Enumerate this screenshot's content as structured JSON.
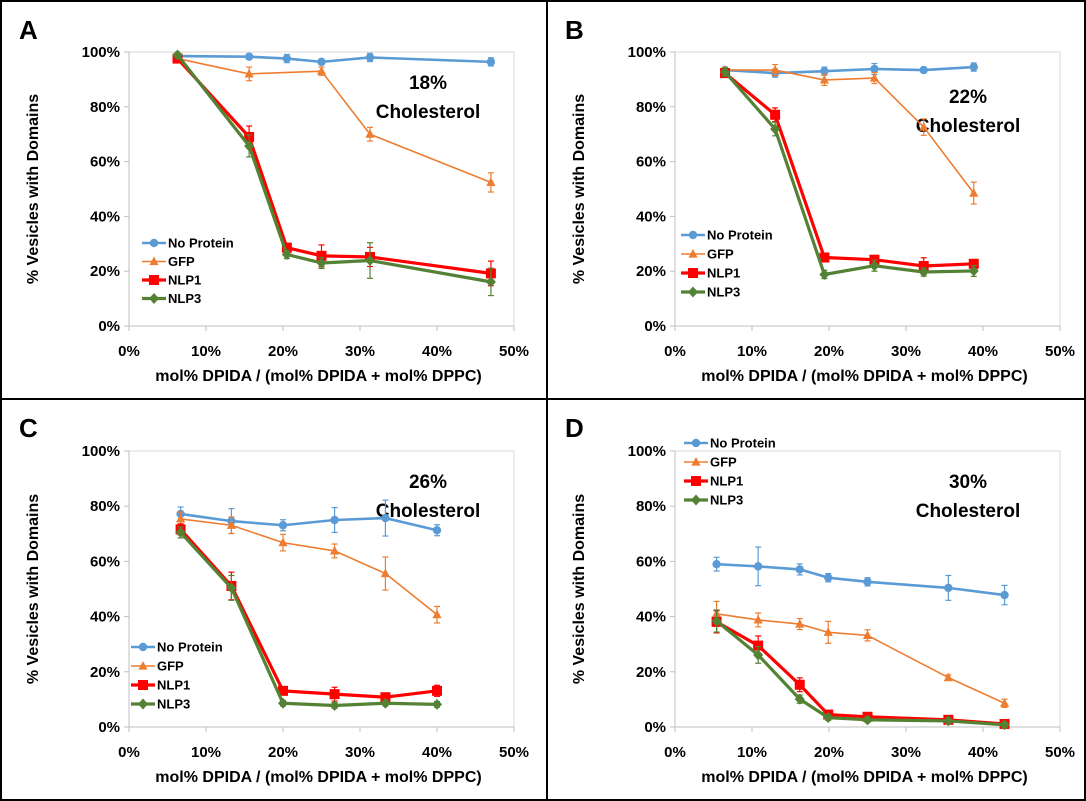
{
  "figure": {
    "colors": {
      "No Protein": "#5B9BD5",
      "GFP": "#ED7D31",
      "NLP1": "#FF0000",
      "NLP3": "#548235"
    }
  },
  "chart_data": [
    {
      "type": "line",
      "panel_label": "A",
      "annotation": [
        "18%",
        "Cholesterol"
      ],
      "xlabel": "mol% DPIDA / (mol% DPIDA + mol% DPPC)",
      "ylabel": "% Vesicles with Domains",
      "xlim": [
        0,
        50
      ],
      "ylim": [
        0,
        100
      ],
      "xticks": [
        "0%",
        "10%",
        "20%",
        "30%",
        "40%",
        "50%"
      ],
      "yticks": [
        "0%",
        "20%",
        "40%",
        "60%",
        "80%",
        "100%"
      ],
      "legend_position": "lower-left",
      "series": [
        {
          "name": "No Protein",
          "marker": "circle",
          "x": [
            6.3,
            15.6,
            20.5,
            25.0,
            31.3,
            47.0
          ],
          "y": [
            98.5,
            98.3,
            97.6,
            96.4,
            98.0,
            96.4
          ],
          "err": [
            1.0,
            1.0,
            1.5,
            1.0,
            1.5,
            1.5
          ]
        },
        {
          "name": "GFP",
          "marker": "triangle",
          "x": [
            6.3,
            15.6,
            25.0,
            31.3,
            47.0
          ],
          "y": [
            97.6,
            92.0,
            93.0,
            70.0,
            52.4
          ],
          "err": [
            1.0,
            2.5,
            1.5,
            2.5,
            3.5
          ]
        },
        {
          "name": "NLP1",
          "marker": "square",
          "x": [
            6.3,
            15.6,
            20.5,
            25.0,
            31.3,
            47.0
          ],
          "y": [
            97.6,
            69.0,
            28.6,
            25.6,
            25.2,
            19.2
          ],
          "err": [
            1.0,
            4.0,
            1.5,
            4.0,
            3.5,
            4.5
          ]
        },
        {
          "name": "NLP3",
          "marker": "diamond",
          "x": [
            6.3,
            15.6,
            20.5,
            25.0,
            31.3,
            47.0
          ],
          "y": [
            98.9,
            65.7,
            26.1,
            23.0,
            23.9,
            16.1
          ],
          "err": [
            1.0,
            4.0,
            1.5,
            2.0,
            6.5,
            5.0
          ]
        }
      ]
    },
    {
      "type": "line",
      "panel_label": "B",
      "annotation": [
        "22%",
        "Cholesterol"
      ],
      "xlabel": "mol% DPIDA / (mol% DPIDA + mol% DPPC)",
      "ylabel": "% Vesicles with Domains",
      "xlim": [
        0,
        50
      ],
      "ylim": [
        0,
        100
      ],
      "xticks": [
        "0%",
        "10%",
        "20%",
        "30%",
        "40%",
        "50%"
      ],
      "yticks": [
        "0%",
        "20%",
        "40%",
        "60%",
        "80%",
        "100%"
      ],
      "legend_position": "lower-left",
      "series": [
        {
          "name": "No Protein",
          "marker": "circle",
          "x": [
            6.5,
            13.0,
            19.4,
            25.9,
            32.3,
            38.8
          ],
          "y": [
            93.4,
            92.3,
            93.0,
            93.8,
            93.4,
            94.5
          ],
          "err": [
            1.0,
            1.5,
            1.5,
            2.0,
            1.0,
            1.5
          ]
        },
        {
          "name": "GFP",
          "marker": "triangle",
          "x": [
            6.5,
            13.0,
            19.4,
            25.9,
            32.3,
            38.8
          ],
          "y": [
            93.4,
            93.4,
            89.8,
            90.5,
            72.6,
            48.5
          ],
          "err": [
            1.0,
            2.0,
            2.0,
            2.0,
            3.0,
            4.0
          ]
        },
        {
          "name": "NLP1",
          "marker": "square",
          "x": [
            6.5,
            13.0,
            19.4,
            25.9,
            32.3,
            38.8
          ],
          "y": [
            92.3,
            77.1,
            25.0,
            24.2,
            21.9,
            22.7
          ],
          "err": [
            1.5,
            2.5,
            1.5,
            1.5,
            3.0,
            1.5
          ]
        },
        {
          "name": "NLP3",
          "marker": "diamond",
          "x": [
            6.5,
            13.0,
            19.4,
            25.9,
            32.3,
            38.8
          ],
          "y": [
            92.7,
            71.9,
            18.8,
            22.0,
            19.7,
            20.1
          ],
          "err": [
            1.5,
            2.5,
            1.5,
            2.0,
            1.5,
            2.0
          ]
        }
      ]
    },
    {
      "type": "line",
      "panel_label": "C",
      "annotation": [
        "26%",
        "Cholesterol"
      ],
      "xlabel": "mol% DPIDA / (mol% DPIDA + mol% DPPC)",
      "ylabel": "% Vesicles with Domains",
      "xlim": [
        0,
        50
      ],
      "ylim": [
        0,
        100
      ],
      "xticks": [
        "0%",
        "10%",
        "20%",
        "30%",
        "40%",
        "50%"
      ],
      "yticks": [
        "0%",
        "20%",
        "40%",
        "60%",
        "80%",
        "100%"
      ],
      "legend_position": "lower-left",
      "series": [
        {
          "name": "No Protein",
          "marker": "circle",
          "x": [
            6.7,
            13.3,
            20.0,
            26.7,
            33.3,
            40.0
          ],
          "y": [
            77.2,
            74.6,
            73.1,
            75.0,
            75.7,
            71.3
          ],
          "err": [
            2.5,
            4.5,
            2.0,
            4.5,
            6.5,
            2.0
          ]
        },
        {
          "name": "GFP",
          "marker": "triangle",
          "x": [
            6.7,
            13.3,
            20.0,
            26.7,
            33.3,
            40.0
          ],
          "y": [
            75.4,
            73.1,
            66.8,
            63.8,
            55.6,
            40.7
          ],
          "err": [
            2.5,
            3.0,
            3.0,
            2.5,
            6.0,
            3.0
          ]
        },
        {
          "name": "NLP1",
          "marker": "square",
          "x": [
            6.7,
            13.3,
            20.0,
            26.7,
            33.3,
            40.0
          ],
          "y": [
            71.6,
            51.1,
            13.1,
            11.9,
            10.8,
            13.1
          ],
          "err": [
            2.0,
            5.0,
            1.0,
            2.5,
            1.0,
            2.0
          ]
        },
        {
          "name": "NLP3",
          "marker": "diamond",
          "x": [
            6.7,
            13.3,
            20.0,
            26.7,
            33.3,
            40.0
          ],
          "y": [
            70.5,
            50.4,
            8.6,
            7.8,
            8.6,
            8.2
          ],
          "err": [
            2.0,
            4.5,
            1.0,
            1.0,
            1.0,
            1.0
          ]
        }
      ]
    },
    {
      "type": "line",
      "panel_label": "D",
      "annotation": [
        "30%",
        "Cholesterol"
      ],
      "xlabel": "mol% DPIDA / (mol% DPIDA + mol% DPPC)",
      "ylabel": "% Vesicles with Domains",
      "xlim": [
        0,
        50
      ],
      "ylim": [
        0,
        100
      ],
      "xticks": [
        "0%",
        "10%",
        "20%",
        "30%",
        "40%",
        "50%"
      ],
      "yticks": [
        "0%",
        "20%",
        "40%",
        "60%",
        "80%",
        "100%"
      ],
      "legend_position": "top-left",
      "series": [
        {
          "name": "No Protein",
          "marker": "circle",
          "x": [
            5.4,
            10.8,
            16.2,
            19.9,
            25.0,
            35.5,
            42.8
          ],
          "y": [
            59.0,
            58.2,
            57.1,
            54.1,
            52.6,
            50.4,
            47.8
          ],
          "err": [
            2.5,
            7.0,
            2.0,
            1.5,
            1.5,
            4.5,
            3.5
          ]
        },
        {
          "name": "GFP",
          "marker": "triangle",
          "x": [
            5.4,
            10.8,
            16.2,
            19.9,
            25.0,
            35.5,
            42.8
          ],
          "y": [
            41.0,
            38.8,
            37.3,
            34.3,
            33.2,
            17.9,
            8.6
          ],
          "err": [
            4.5,
            2.5,
            2.0,
            4.0,
            2.0,
            1.0,
            1.5
          ]
        },
        {
          "name": "NLP1",
          "marker": "square",
          "x": [
            5.4,
            10.8,
            16.2,
            19.9,
            25.0,
            35.5,
            42.8
          ],
          "y": [
            38.1,
            29.5,
            15.3,
            4.5,
            3.7,
            2.6,
            1.1
          ],
          "err": [
            4.0,
            3.5,
            2.5,
            1.0,
            1.0,
            1.0,
            1.0
          ]
        },
        {
          "name": "NLP3",
          "marker": "diamond",
          "x": [
            5.4,
            10.8,
            16.2,
            19.9,
            25.0,
            35.5,
            42.8
          ],
          "y": [
            38.4,
            26.1,
            10.1,
            3.4,
            2.6,
            2.2,
            0.8
          ],
          "err": [
            4.0,
            3.0,
            1.5,
            1.0,
            1.0,
            1.0,
            1.0
          ]
        }
      ]
    }
  ]
}
